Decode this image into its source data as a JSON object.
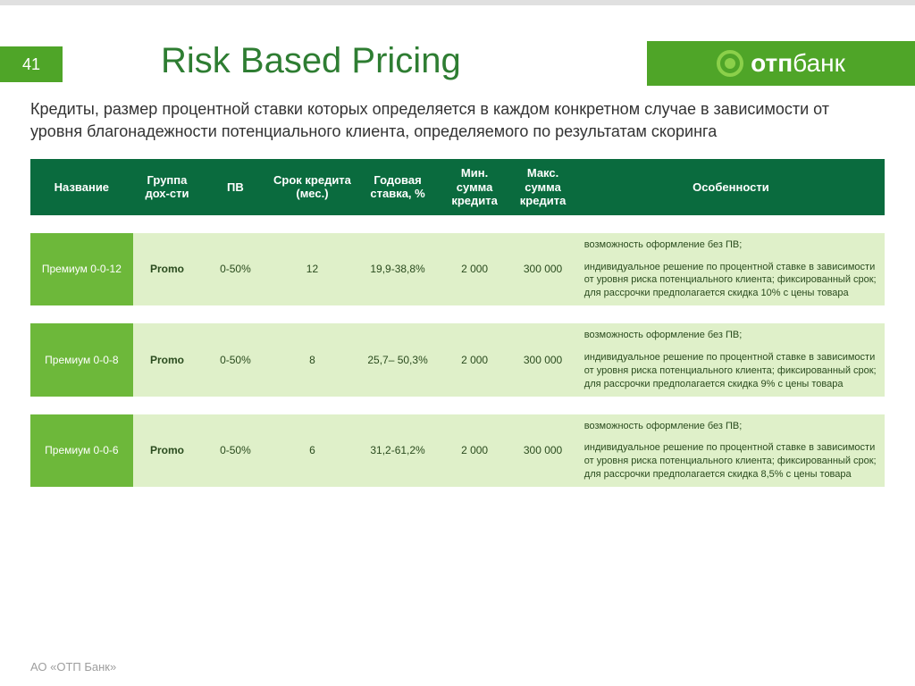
{
  "page_number": "41",
  "title": "Risk Based Pricing",
  "title_color": "#2e7d32",
  "brand": {
    "name_bold": "отп",
    "name_light": "банк",
    "band_color": "#4fa528"
  },
  "subtitle": "Кредиты, размер процентной ставки которых определяется в каждом конкретном случае в зависимости от уровня благонадежности потенциального клиента, определяемого по результатам скоринга",
  "table": {
    "header_bg": "#0a6b3e",
    "columns": [
      {
        "label": "Название",
        "width": "12%"
      },
      {
        "label": "Группа дох-сти",
        "width": "8%"
      },
      {
        "label": "ПВ",
        "width": "8%"
      },
      {
        "label": "Срок кредита (мес.)",
        "width": "10%"
      },
      {
        "label": "Годовая ставка, %",
        "width": "10%"
      },
      {
        "label": "Мин. сумма кредита",
        "width": "8%"
      },
      {
        "label": "Макс. сумма кредита",
        "width": "8%"
      },
      {
        "label": "Особенности",
        "width": "36%"
      }
    ],
    "gap_bg": "#ffffff",
    "rows": [
      {
        "name": "Премиум 0-0-12",
        "name_bg": "#6db83a",
        "row_bg": "#dff0c9",
        "group": "Promo",
        "pv": "0-50%",
        "term": "12",
        "rate": "19,9-38,8%",
        "min": "2 000",
        "max": "300 000",
        "feat1": "возможность оформление без ПВ;",
        "feat2": "индивидуальное решение по процентной ставке в зависимости от уровня риска потенциального клиента; фиксированный срок; для рассрочки предполагается скидка 10% с цены товара"
      },
      {
        "name": "Премиум 0-0-8",
        "name_bg": "#6db83a",
        "row_bg": "#dff0c9",
        "group": "Promo",
        "pv": "0-50%",
        "term": "8",
        "rate": "25,7– 50,3%",
        "min": "2 000",
        "max": "300 000",
        "feat1": "возможность оформление без ПВ;",
        "feat2": "индивидуальное решение по процентной ставке в зависимости от уровня риска потенциального клиента; фиксированный срок; для рассрочки предполагается скидка 9% с цены товара"
      },
      {
        "name": "Премиум 0-0-6",
        "name_bg": "#6db83a",
        "row_bg": "#dff0c9",
        "group": "Promo",
        "pv": "0-50%",
        "term": "6",
        "rate": "31,2-61,2%",
        "min": "2 000",
        "max": "300 000",
        "feat1": "возможность оформление без ПВ;",
        "feat2": "индивидуальное решение по процентной ставке в зависимости от уровня риска потенциального клиента; фиксированный срок; для рассрочки предполагается скидка 8,5% с цены товара"
      }
    ]
  },
  "footer": "АО «ОТП Банк»"
}
